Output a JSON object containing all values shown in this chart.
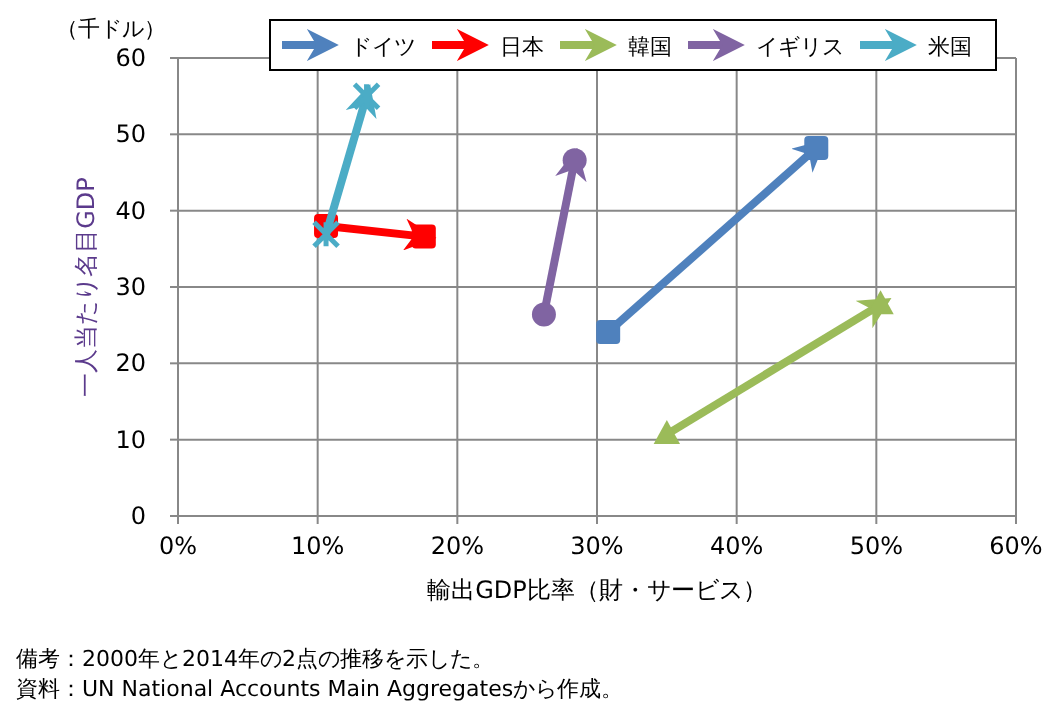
{
  "chart_data": {
    "type": "line",
    "xlabel": "輸出GDP比率（財・サービス）",
    "ylabel": "一人当たり名目GDP",
    "annotations": [
      "（千ドル）",
      "備考：2000年と2014年の2点の推移を示した。",
      "資料：UN National Accounts Main Aggregatesから作成。"
    ],
    "series": [
      {
        "name": "ドイツ",
        "color": "#4f81bd",
        "marker": "square",
        "x": [
          30.8,
          45.7
        ],
        "values": [
          24.1,
          48.2
        ]
      },
      {
        "name": "日本",
        "color": "#ff0000",
        "marker": "square",
        "x": [
          10.6,
          17.6
        ],
        "values": [
          38.0,
          36.6
        ]
      },
      {
        "name": "韓国",
        "color": "#9bbb59",
        "marker": "triangle",
        "x": [
          35.0,
          50.3
        ],
        "values": [
          10.7,
          27.7
        ]
      },
      {
        "name": "イギリス",
        "color": "#8064a2",
        "marker": "circle",
        "x": [
          26.2,
          28.4
        ],
        "values": [
          26.4,
          46.6
        ]
      },
      {
        "name": "米国",
        "color": "#4bacc6",
        "marker": "cross",
        "x": [
          10.6,
          13.5
        ],
        "values": [
          36.9,
          55.0
        ]
      }
    ],
    "xlim": [
      0,
      60
    ],
    "xticks": [
      {
        "value": 0,
        "label": "0%"
      },
      {
        "value": 10,
        "label": "10%"
      },
      {
        "value": 20,
        "label": "20%"
      },
      {
        "value": 30,
        "label": "30%"
      },
      {
        "value": 40,
        "label": "40%"
      },
      {
        "value": 50,
        "label": "50%"
      },
      {
        "value": 60,
        "label": "60%"
      }
    ],
    "ylim": [
      0,
      60
    ],
    "yticks": [
      0,
      10,
      20,
      30,
      40,
      50,
      60
    ],
    "grid": true,
    "legend": "top"
  }
}
